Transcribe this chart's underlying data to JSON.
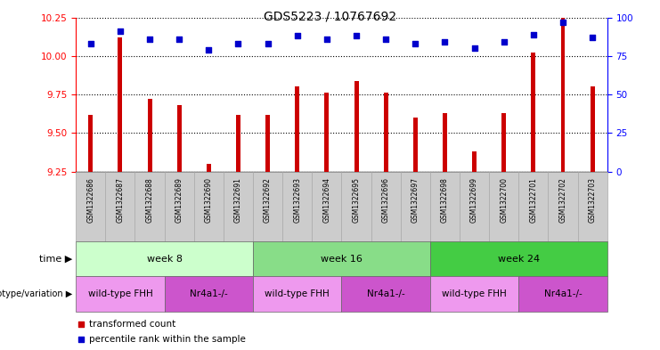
{
  "title": "GDS5223 / 10767692",
  "samples": [
    "GSM1322686",
    "GSM1322687",
    "GSM1322688",
    "GSM1322689",
    "GSM1322690",
    "GSM1322691",
    "GSM1322692",
    "GSM1322693",
    "GSM1322694",
    "GSM1322695",
    "GSM1322696",
    "GSM1322697",
    "GSM1322698",
    "GSM1322699",
    "GSM1322700",
    "GSM1322701",
    "GSM1322702",
    "GSM1322703"
  ],
  "transformed_count": [
    9.62,
    10.12,
    9.72,
    9.68,
    9.3,
    9.62,
    9.62,
    9.8,
    9.76,
    9.84,
    9.76,
    9.6,
    9.63,
    9.38,
    9.63,
    10.02,
    10.25,
    9.8
  ],
  "percentile_rank": [
    83,
    91,
    86,
    86,
    79,
    83,
    83,
    88,
    86,
    88,
    86,
    83,
    84,
    80,
    84,
    89,
    97,
    87
  ],
  "ylim_left": [
    9.25,
    10.25
  ],
  "ylim_right": [
    0,
    100
  ],
  "yticks_left": [
    9.25,
    9.5,
    9.75,
    10.0,
    10.25
  ],
  "yticks_right": [
    0,
    25,
    50,
    75,
    100
  ],
  "bar_color": "#cc0000",
  "dot_color": "#0000cc",
  "bar_width": 0.15,
  "time_groups": [
    {
      "label": "week 8",
      "start": 0,
      "end": 5,
      "color": "#ccffcc"
    },
    {
      "label": "week 16",
      "start": 6,
      "end": 11,
      "color": "#88dd88"
    },
    {
      "label": "week 24",
      "start": 12,
      "end": 17,
      "color": "#44cc44"
    }
  ],
  "geno_groups": [
    {
      "label": "wild-type FHH",
      "start": 0,
      "end": 2,
      "color": "#ee99ee"
    },
    {
      "label": "Nr4a1-/-",
      "start": 3,
      "end": 5,
      "color": "#cc55cc"
    },
    {
      "label": "wild-type FHH",
      "start": 6,
      "end": 8,
      "color": "#ee99ee"
    },
    {
      "label": "Nr4a1-/-",
      "start": 9,
      "end": 11,
      "color": "#cc55cc"
    },
    {
      "label": "wild-type FHH",
      "start": 12,
      "end": 14,
      "color": "#ee99ee"
    },
    {
      "label": "Nr4a1-/-",
      "start": 15,
      "end": 17,
      "color": "#cc55cc"
    }
  ],
  "legend_transformed": "transformed count",
  "legend_percentile": "percentile rank within the sample",
  "sample_row_color": "#cccccc",
  "sample_border_color": "#aaaaaa"
}
